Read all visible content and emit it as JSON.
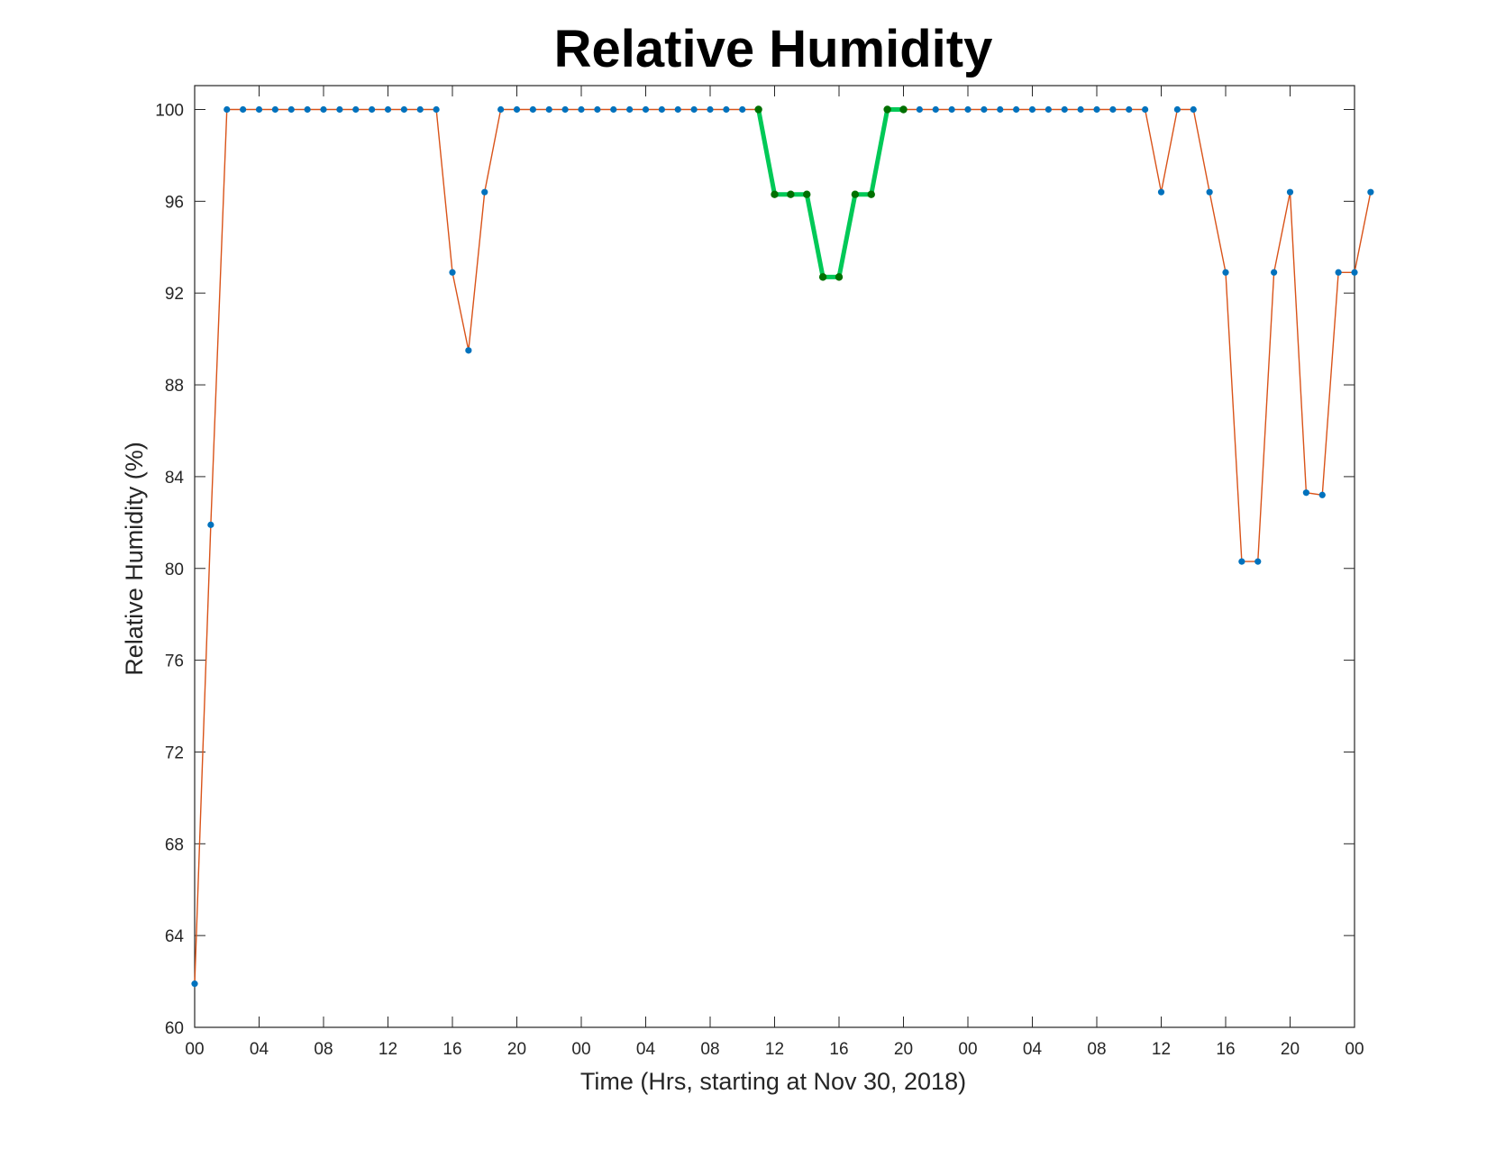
{
  "chart_data": {
    "type": "line",
    "title": "Relative Humidity",
    "xlabel": "Time (Hrs, starting at Nov 30, 2018)",
    "ylabel": "Relative Humidity (%)",
    "x_unit": "hours",
    "xlim": [
      0,
      72
    ],
    "ylim": [
      60,
      101
    ],
    "x_ticks": [
      0,
      4,
      8,
      12,
      16,
      20,
      24,
      28,
      32,
      36,
      40,
      44,
      48,
      52,
      56,
      60,
      64,
      68,
      72
    ],
    "x_tick_labels": [
      "00",
      "04",
      "08",
      "12",
      "16",
      "20",
      "00",
      "04",
      "08",
      "12",
      "16",
      "20",
      "00",
      "04",
      "08",
      "12",
      "16",
      "20",
      "00"
    ],
    "y_ticks": [
      60,
      64,
      68,
      72,
      76,
      80,
      84,
      88,
      92,
      96,
      100
    ],
    "grid": "horizontal",
    "colors": {
      "line": "#d95319",
      "marker": "#0072bd",
      "highlight_line": "#00c957",
      "highlight_marker": "#007000"
    },
    "series": [
      {
        "values": [
          61.9,
          81.9,
          100,
          100,
          100,
          100,
          100,
          100,
          100,
          100,
          100,
          100,
          100,
          100,
          100,
          100,
          92.9,
          89.5,
          96.4,
          100,
          100,
          100,
          100,
          100,
          100,
          100,
          100,
          100,
          100,
          100,
          100,
          100,
          100,
          100,
          100,
          100,
          96.3,
          96.3,
          96.3,
          92.7,
          92.7,
          96.3,
          96.3,
          100,
          100,
          100,
          100,
          100,
          100,
          100,
          100,
          100,
          100,
          100,
          100,
          100,
          100,
          100,
          100,
          100,
          96.4,
          100,
          100,
          96.4,
          92.9,
          80.3,
          80.3,
          92.9,
          96.4,
          83.3,
          83.2,
          92.9,
          92.9,
          96.4
        ]
      }
    ],
    "highlight_range": [
      35,
      44
    ]
  }
}
